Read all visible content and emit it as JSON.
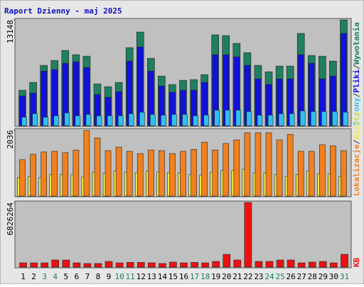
{
  "chart_data": [
    {
      "type": "bar",
      "title": "Raport Dzienny -  maj 2025",
      "legend_separator": "/",
      "ylim": [
        0,
        13148
      ],
      "yticks": [
        13148
      ],
      "series": [
        {
          "name": "Wywołania",
          "color": "#1f7f5f",
          "values": [
            4410,
            5380,
            7500,
            8110,
            9350,
            8820,
            8640,
            5200,
            4850,
            5380,
            9700,
            11640,
            8380,
            6170,
            5120,
            5640,
            5730,
            6350,
            11290,
            11200,
            10230,
            9080,
            7500,
            6700,
            7410,
            7410,
            11470,
            8730,
            8640,
            8030,
            13148
          ]
        },
        {
          "name": "Pliki",
          "color": "#1010e0",
          "values": [
            3700,
            4060,
            6790,
            6970,
            7760,
            7940,
            7230,
            3880,
            3530,
            4230,
            8030,
            9790,
            6790,
            4940,
            4150,
            4410,
            4410,
            5380,
            8820,
            8820,
            8560,
            7500,
            5820,
            5120,
            5820,
            5820,
            8820,
            7760,
            5820,
            6170,
            11470
          ]
        },
        {
          "name": "Strony",
          "color": "#30c0f0",
          "values": [
            1060,
            1500,
            1060,
            1240,
            1590,
            1240,
            1410,
            1240,
            1240,
            1240,
            1500,
            1680,
            1410,
            1320,
            1410,
            1410,
            1240,
            1320,
            1940,
            1940,
            1940,
            1760,
            1320,
            1320,
            1500,
            1500,
            1850,
            1760,
            1760,
            1760,
            1680
          ]
        }
      ]
    },
    {
      "type": "bar",
      "legend_separator": "/",
      "ylim": [
        0,
        2036
      ],
      "yticks": [
        2036
      ],
      "series": [
        {
          "name": "Wizyty",
          "color": "#f8e840",
          "values": [
            570,
            610,
            570,
            660,
            660,
            660,
            590,
            740,
            700,
            770,
            740,
            720,
            770,
            740,
            720,
            720,
            660,
            640,
            740,
            790,
            790,
            830,
            720,
            720,
            660,
            610,
            660,
            770,
            680,
            680,
            610
          ]
        },
        {
          "name": "Lokalizacje",
          "color": "#f08020",
          "values": [
            1120,
            1290,
            1360,
            1380,
            1340,
            1420,
            2020,
            1790,
            1400,
            1510,
            1380,
            1310,
            1420,
            1400,
            1310,
            1380,
            1440,
            1660,
            1420,
            1620,
            1730,
            1950,
            1950,
            1950,
            1730,
            1900,
            1380,
            1380,
            1580,
            1550,
            1400
          ]
        }
      ]
    },
    {
      "type": "bar",
      "ylim": [
        0,
        6826264
      ],
      "yticks": [
        6826264
      ],
      "categories": [
        "1",
        "2",
        "3",
        "4",
        "5",
        "6",
        "7",
        "8",
        "9",
        "10",
        "11",
        "12",
        "13",
        "14",
        "15",
        "16",
        "17",
        "18",
        "19",
        "20",
        "21",
        "22",
        "23",
        "24",
        "25",
        "26",
        "27",
        "28",
        "29",
        "30",
        "31"
      ],
      "category_colors": [
        "#000",
        "#000",
        "#1f7f5f",
        "#1f7f5f",
        "#000",
        "#000",
        "#000",
        "#000",
        "#000",
        "#1f7f5f",
        "#1f7f5f",
        "#000",
        "#000",
        "#000",
        "#000",
        "#000",
        "#1f7f5f",
        "#1f7f5f",
        "#000",
        "#000",
        "#000",
        "#000",
        "#000",
        "#1f7f5f",
        "#1f7f5f",
        "#000",
        "#000",
        "#000",
        "#000",
        "#000",
        "#1f7f5f"
      ],
      "series": [
        {
          "name": "KB",
          "color": "#ee1010",
          "values": [
            450000,
            450000,
            450000,
            750000,
            750000,
            450000,
            380000,
            380000,
            600000,
            450000,
            500000,
            500000,
            450000,
            380000,
            530000,
            450000,
            500000,
            450000,
            600000,
            1350000,
            750000,
            6826264,
            600000,
            600000,
            750000,
            750000,
            450000,
            530000,
            600000,
            450000,
            1350000
          ]
        }
      ]
    }
  ]
}
